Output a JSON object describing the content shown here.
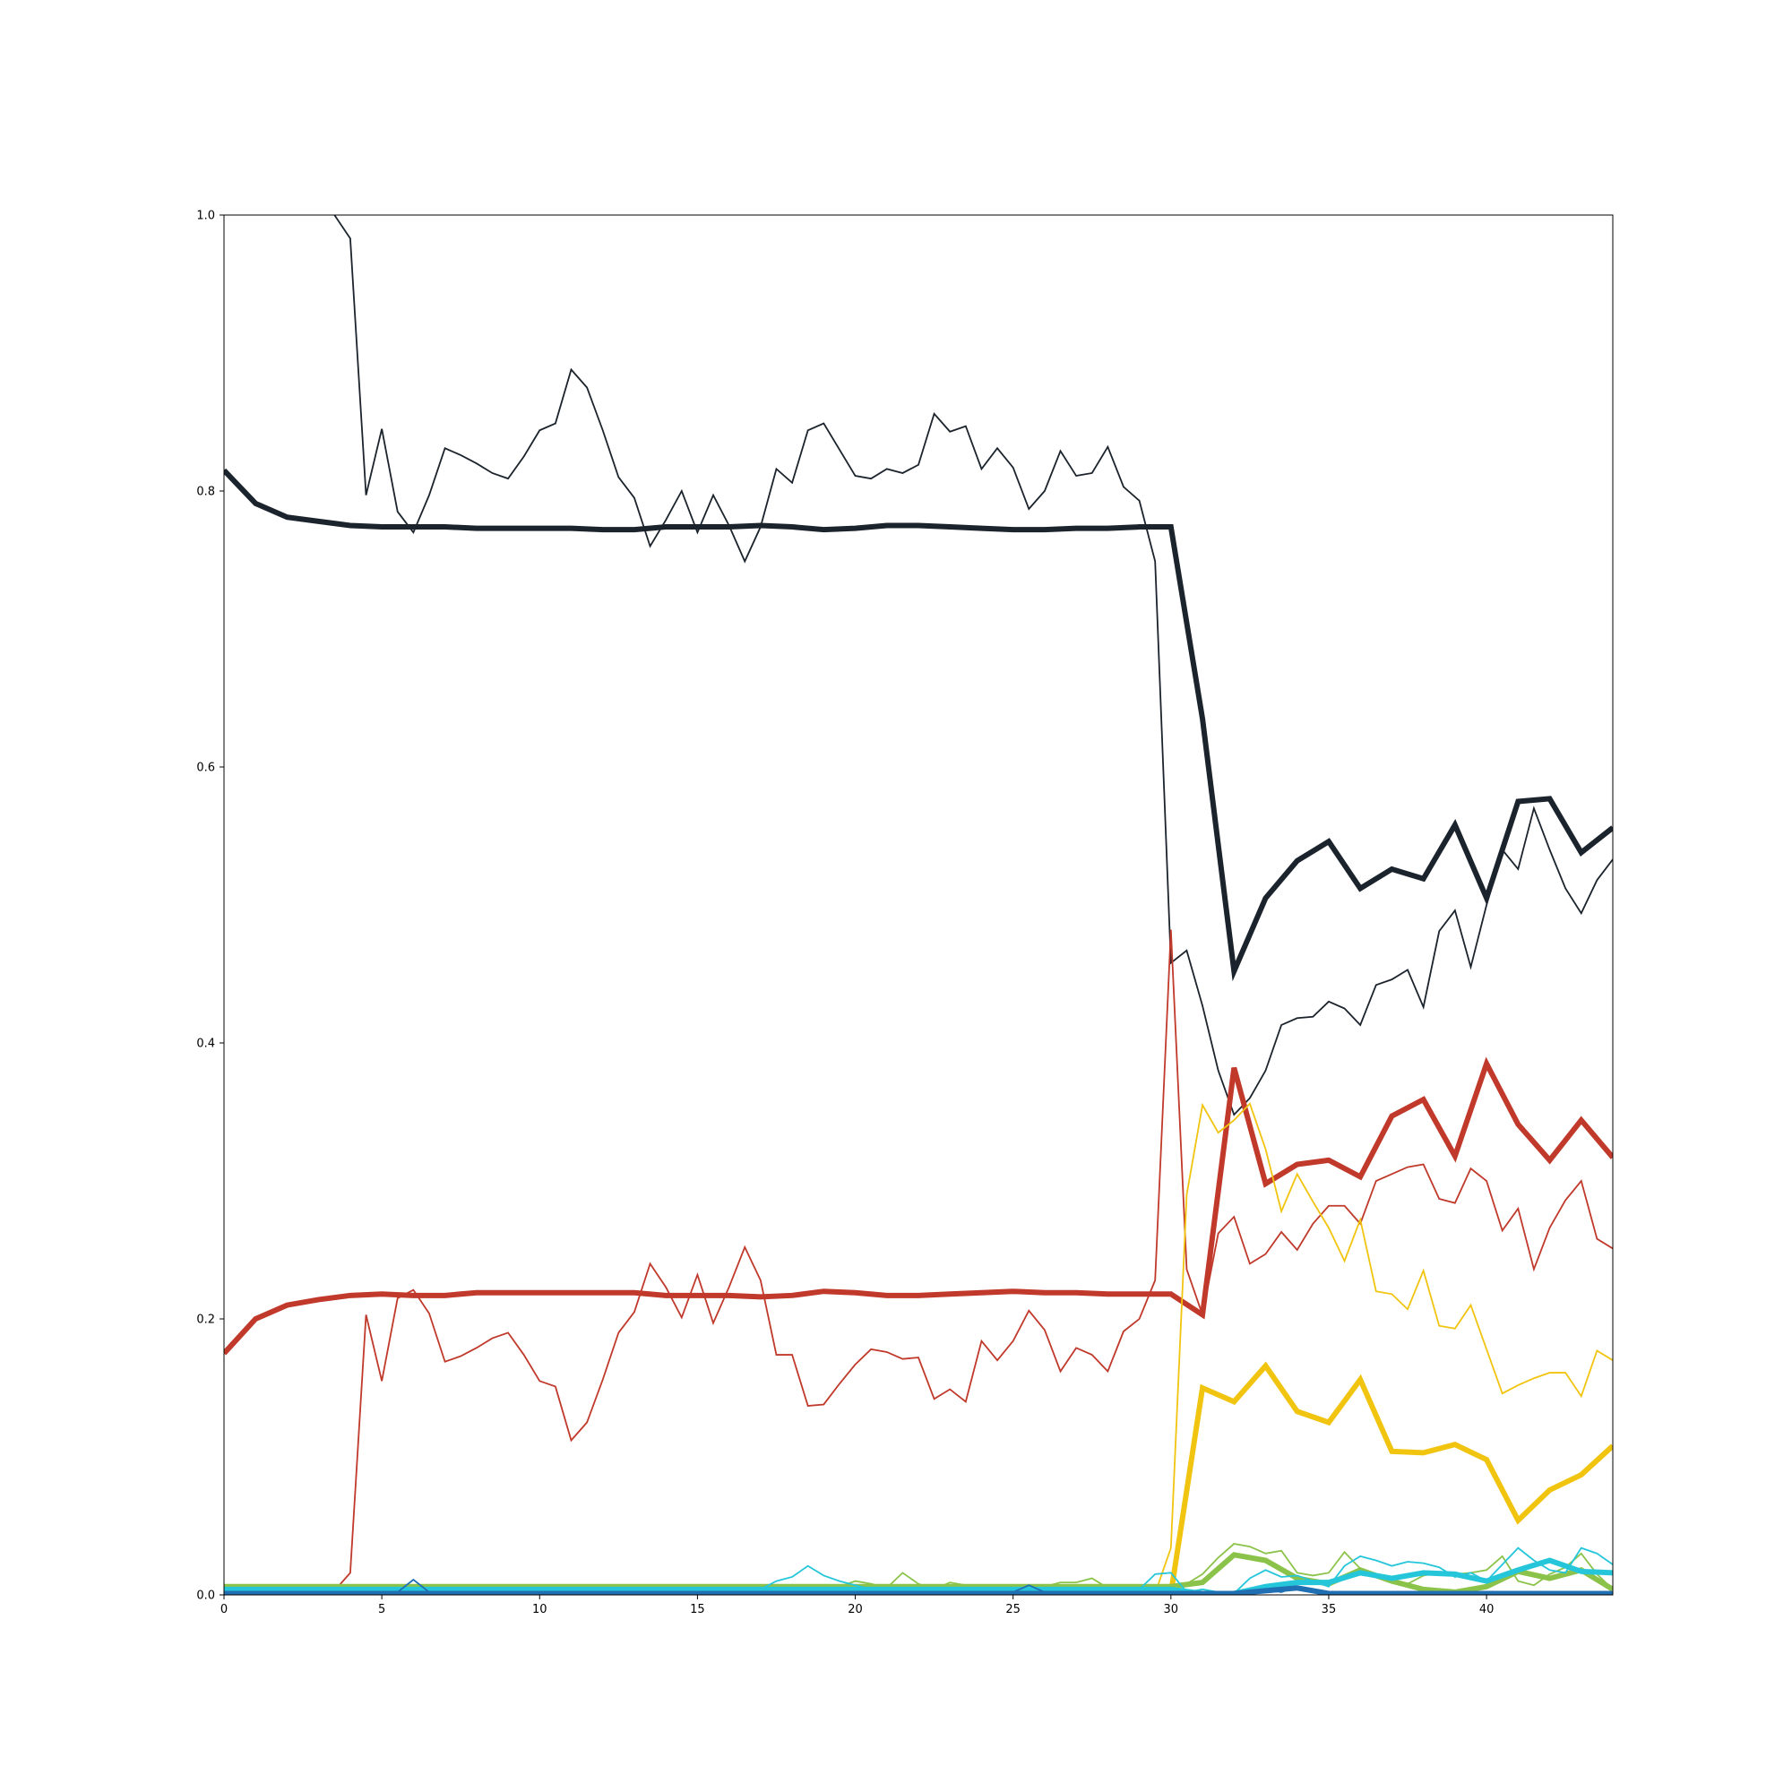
{
  "chart_data": {
    "type": "line",
    "title": "",
    "xlabel": "",
    "ylabel": "",
    "xlim": [
      0,
      44
    ],
    "ylim": [
      0,
      1.0
    ],
    "grid": false,
    "legend": "none",
    "x_ticks": [
      0,
      5,
      10,
      15,
      20,
      25,
      30,
      35,
      40
    ],
    "x_tick_labels": [
      "0",
      "5",
      "10",
      "15",
      "20",
      "25",
      "30",
      "35",
      "40"
    ],
    "y_ticks": [
      0,
      0.2,
      0.4,
      0.6,
      0.8,
      1.0
    ],
    "y_tick_labels": [
      "0.0",
      "0.2",
      "0.4",
      "0.6",
      "0.8",
      "1.0"
    ],
    "series": [
      {
        "color": "#1b232c",
        "weight": "thin",
        "x": [
          3.5,
          4,
          4.5,
          5,
          5.5,
          6,
          6.5,
          7,
          7.5,
          8,
          8.5,
          9,
          9.5,
          10,
          10.5,
          11,
          11.5,
          12,
          12.5,
          13,
          13.5,
          14,
          14.5,
          15,
          15.5,
          16,
          16.5,
          17,
          17.5,
          18,
          18.5,
          19,
          19.5,
          20,
          20.5,
          21,
          21.5,
          22,
          22.5,
          23,
          23.5,
          24,
          24.5,
          25,
          25.5,
          26,
          26.5,
          27,
          27.5,
          28,
          28.5,
          29,
          29.5,
          30,
          30.5,
          31,
          31.5,
          32,
          32.5,
          33,
          33.5,
          34,
          34.5,
          35,
          35.5,
          36,
          36.5,
          37,
          37.5,
          38,
          38.5,
          39,
          39.5,
          40,
          40.5,
          41,
          41.5,
          42,
          42.5,
          43,
          43.5,
          44
        ],
        "y": [
          1.0,
          0.983,
          0.797,
          0.845,
          0.785,
          0.77,
          0.797,
          0.831,
          0.826,
          0.82,
          0.813,
          0.809,
          0.825,
          0.844,
          0.849,
          0.888,
          0.875,
          0.844,
          0.81,
          0.795,
          0.76,
          0.779,
          0.8,
          0.77,
          0.797,
          0.775,
          0.749,
          0.774,
          0.816,
          0.806,
          0.844,
          0.849,
          0.83,
          0.811,
          0.809,
          0.816,
          0.813,
          0.819,
          0.856,
          0.843,
          0.847,
          0.816,
          0.831,
          0.817,
          0.787,
          0.8,
          0.829,
          0.811,
          0.813,
          0.832,
          0.803,
          0.793,
          0.749,
          0.458,
          0.467,
          0.427,
          0.38,
          0.348,
          0.36,
          0.38,
          0.413,
          0.418,
          0.419,
          0.43,
          0.425,
          0.413,
          0.442,
          0.446,
          0.453,
          0.426,
          0.481,
          0.496,
          0.455,
          0.5,
          0.54,
          0.526,
          0.57,
          0.54,
          0.512,
          0.494,
          0.518,
          0.533
        ]
      },
      {
        "color": "#1b232c",
        "weight": "bold",
        "x": [
          0,
          1,
          2,
          3,
          4,
          5,
          6,
          7,
          8,
          9,
          10,
          11,
          12,
          13,
          14,
          15,
          16,
          17,
          18,
          19,
          20,
          21,
          22,
          23,
          24,
          25,
          26,
          27,
          28,
          29,
          30,
          31,
          32,
          33,
          34,
          35,
          36,
          37,
          38,
          39,
          40,
          41,
          42,
          43,
          44
        ],
        "y": [
          0.815,
          0.791,
          0.781,
          0.778,
          0.775,
          0.774,
          0.774,
          0.774,
          0.773,
          0.773,
          0.773,
          0.773,
          0.772,
          0.772,
          0.774,
          0.774,
          0.774,
          0.775,
          0.774,
          0.772,
          0.773,
          0.775,
          0.775,
          0.774,
          0.773,
          0.772,
          0.772,
          0.773,
          0.773,
          0.774,
          0.774,
          0.635,
          0.452,
          0.505,
          0.532,
          0.546,
          0.512,
          0.526,
          0.519,
          0.558,
          0.505,
          0.575,
          0.577,
          0.538,
          0.556
        ]
      },
      {
        "color": "#c0392b",
        "weight": "thin",
        "x": [
          0,
          3.5,
          4,
          4.5,
          5,
          5.5,
          6,
          6.5,
          7,
          7.5,
          8,
          8.5,
          9,
          9.5,
          10,
          10.5,
          11,
          11.5,
          12,
          12.5,
          13,
          13.5,
          14,
          14.5,
          15,
          15.5,
          16,
          16.5,
          17,
          17.5,
          18,
          18.5,
          19,
          19.5,
          20,
          20.5,
          21,
          21.5,
          22,
          22.5,
          23,
          23.5,
          24,
          24.5,
          25,
          25.5,
          26,
          26.5,
          27,
          27.5,
          28,
          28.5,
          29,
          29.5,
          30,
          30.5,
          31,
          31.5,
          32,
          32.5,
          33,
          33.5,
          34,
          34.5,
          35,
          35.5,
          36,
          36.5,
          37,
          37.5,
          38,
          38.5,
          39,
          39.5,
          40,
          40.5,
          41,
          41.5,
          42,
          42.5,
          43,
          43.5,
          44
        ],
        "y": [
          0.003,
          0.003,
          0.016,
          0.203,
          0.155,
          0.215,
          0.221,
          0.204,
          0.169,
          0.173,
          0.179,
          0.186,
          0.19,
          0.174,
          0.155,
          0.151,
          0.112,
          0.125,
          0.156,
          0.19,
          0.205,
          0.24,
          0.223,
          0.201,
          0.232,
          0.197,
          0.223,
          0.252,
          0.228,
          0.174,
          0.174,
          0.137,
          0.138,
          0.153,
          0.167,
          0.178,
          0.176,
          0.171,
          0.172,
          0.142,
          0.149,
          0.14,
          0.184,
          0.17,
          0.184,
          0.206,
          0.192,
          0.162,
          0.179,
          0.174,
          0.162,
          0.191,
          0.2,
          0.228,
          0.482,
          0.236,
          0.203,
          0.262,
          0.274,
          0.24,
          0.247,
          0.263,
          0.25,
          0.269,
          0.282,
          0.282,
          0.269,
          0.3,
          0.305,
          0.31,
          0.312,
          0.287,
          0.284,
          0.309,
          0.3,
          0.264,
          0.28,
          0.236,
          0.266,
          0.286,
          0.3,
          0.258,
          0.251
        ]
      },
      {
        "color": "#c0392b",
        "weight": "bold",
        "x": [
          0,
          1,
          2,
          3,
          4,
          5,
          6,
          7,
          8,
          9,
          10,
          11,
          12,
          13,
          14,
          15,
          16,
          17,
          18,
          19,
          20,
          21,
          22,
          23,
          24,
          25,
          26,
          27,
          28,
          29,
          30,
          31,
          32,
          33,
          34,
          35,
          36,
          37,
          38,
          39,
          40,
          41,
          42,
          43,
          44
        ],
        "y": [
          0.175,
          0.2,
          0.21,
          0.214,
          0.217,
          0.218,
          0.217,
          0.217,
          0.219,
          0.219,
          0.219,
          0.219,
          0.219,
          0.219,
          0.217,
          0.217,
          0.217,
          0.216,
          0.217,
          0.22,
          0.219,
          0.217,
          0.217,
          0.218,
          0.219,
          0.22,
          0.219,
          0.219,
          0.218,
          0.218,
          0.218,
          0.203,
          0.382,
          0.298,
          0.312,
          0.315,
          0.303,
          0.347,
          0.359,
          0.318,
          0.385,
          0.341,
          0.315,
          0.344,
          0.317
        ]
      },
      {
        "color": "#f1c40f",
        "weight": "thin",
        "x": [
          0,
          29.5,
          30,
          30.5,
          31,
          31.5,
          32,
          32.5,
          33,
          33.5,
          34,
          34.5,
          35,
          35.5,
          36,
          36.5,
          37,
          37.5,
          38,
          38.5,
          39,
          39.5,
          40,
          40.5,
          41,
          41.5,
          42,
          42.5,
          43,
          43.5,
          44
        ],
        "y": [
          0.001,
          0.001,
          0.034,
          0.29,
          0.355,
          0.335,
          0.344,
          0.356,
          0.323,
          0.278,
          0.305,
          0.285,
          0.266,
          0.242,
          0.272,
          0.22,
          0.218,
          0.207,
          0.235,
          0.195,
          0.193,
          0.21,
          0.178,
          0.146,
          0.152,
          0.157,
          0.161,
          0.161,
          0.144,
          0.177,
          0.17
        ]
      },
      {
        "color": "#f1c40f",
        "weight": "bold",
        "x": [
          0,
          30,
          31,
          32,
          33,
          34,
          35,
          36,
          37,
          38,
          39,
          40,
          41,
          42,
          43,
          44
        ],
        "y": [
          0.001,
          0.001,
          0.15,
          0.14,
          0.166,
          0.133,
          0.125,
          0.156,
          0.104,
          0.103,
          0.109,
          0.098,
          0.054,
          0.076,
          0.087,
          0.108
        ]
      },
      {
        "color": "#8bc34a",
        "weight": "thin",
        "x": [
          0,
          17,
          17.5,
          18,
          18.5,
          19,
          19.5,
          20,
          20.5,
          21,
          21.5,
          22,
          22.5,
          23,
          23.5,
          24,
          24.5,
          25,
          25.5,
          26,
          26.5,
          27,
          27.5,
          28,
          28.5,
          29,
          29.5,
          30,
          30.5,
          31,
          31.5,
          32,
          32.5,
          33,
          33.5,
          34,
          34.5,
          35,
          35.5,
          36,
          36.5,
          37,
          37.5,
          38,
          38.5,
          39,
          39.5,
          40,
          40.5,
          41,
          41.5,
          42,
          42.5,
          43,
          43.5,
          44
        ],
        "y": [
          0.006,
          0.006,
          0.005,
          0.006,
          0.005,
          0.005,
          0.006,
          0.01,
          0.008,
          0.005,
          0.016,
          0.008,
          0.004,
          0.009,
          0.007,
          0.006,
          0.006,
          0.006,
          0.006,
          0.006,
          0.009,
          0.009,
          0.012,
          0.005,
          0.005,
          0.005,
          0.007,
          0.004,
          0.008,
          0.015,
          0.027,
          0.037,
          0.035,
          0.03,
          0.032,
          0.016,
          0.014,
          0.016,
          0.031,
          0.019,
          0.015,
          0.011,
          0.008,
          0.014,
          0.016,
          0.015,
          0.016,
          0.018,
          0.028,
          0.01,
          0.007,
          0.015,
          0.02,
          0.03,
          0.015,
          0.004
        ]
      },
      {
        "color": "#8bc34a",
        "weight": "bold",
        "x": [
          0,
          1,
          2,
          3,
          4,
          5,
          6,
          7,
          8,
          9,
          10,
          11,
          12,
          13,
          14,
          15,
          16,
          17,
          18,
          19,
          20,
          21,
          22,
          23,
          24,
          25,
          26,
          27,
          28,
          29,
          30,
          31,
          32,
          33,
          34,
          35,
          36,
          37,
          38,
          39,
          40,
          41,
          42,
          43,
          44
        ],
        "y": [
          0.006,
          0.006,
          0.006,
          0.006,
          0.006,
          0.006,
          0.006,
          0.006,
          0.006,
          0.006,
          0.006,
          0.006,
          0.006,
          0.006,
          0.006,
          0.006,
          0.006,
          0.006,
          0.006,
          0.006,
          0.006,
          0.006,
          0.006,
          0.006,
          0.006,
          0.006,
          0.006,
          0.006,
          0.006,
          0.006,
          0.006,
          0.009,
          0.029,
          0.025,
          0.012,
          0.008,
          0.018,
          0.01,
          0.004,
          0.002,
          0.006,
          0.017,
          0.012,
          0.018,
          0.004
        ]
      },
      {
        "color": "#26c6da",
        "weight": "thin",
        "x": [
          0,
          17,
          17.5,
          18,
          18.5,
          19,
          19.5,
          20,
          20.5,
          21,
          29,
          29.5,
          30,
          30.5,
          31,
          31.5,
          32,
          32.5,
          33,
          33.5,
          34,
          34.5,
          35,
          35.5,
          36,
          36.5,
          37,
          37.5,
          38,
          38.5,
          39,
          39.5,
          40,
          40.5,
          41,
          41.5,
          42,
          42.5,
          43,
          43.5,
          44
        ],
        "y": [
          0.004,
          0.004,
          0.01,
          0.013,
          0.021,
          0.014,
          0.01,
          0.007,
          0.004,
          0.004,
          0.004,
          0.015,
          0.016,
          0.002,
          0.004,
          0.002,
          0.001,
          0.012,
          0.018,
          0.013,
          0.014,
          0.01,
          0.006,
          0.021,
          0.028,
          0.025,
          0.021,
          0.024,
          0.023,
          0.02,
          0.013,
          0.016,
          0.01,
          0.022,
          0.034,
          0.025,
          0.018,
          0.016,
          0.034,
          0.03,
          0.022
        ]
      },
      {
        "color": "#26c6da",
        "weight": "bold",
        "x": [
          0,
          30,
          31,
          32,
          33,
          34,
          35,
          36,
          37,
          38,
          39,
          40,
          41,
          42,
          43,
          44
        ],
        "y": [
          0.004,
          0.004,
          0.001,
          0.001,
          0.006,
          0.009,
          0.009,
          0.016,
          0.012,
          0.016,
          0.015,
          0.01,
          0.018,
          0.025,
          0.017,
          0.016
        ]
      },
      {
        "color": "#1f6fb2",
        "weight": "thin",
        "x": [
          0,
          5.5,
          6,
          6.5,
          7,
          25,
          25.5,
          26,
          32.5,
          33,
          33.5,
          34,
          34.5,
          35,
          44
        ],
        "y": [
          0.002,
          0.002,
          0.011,
          0.002,
          0.002,
          0.002,
          0.007,
          0.002,
          0.002,
          0.004,
          0.002,
          0.006,
          0.002,
          0.001,
          0.001
        ]
      },
      {
        "color": "#1f6fb2",
        "weight": "bold",
        "x": [
          0,
          32,
          33,
          34,
          35,
          36,
          44
        ],
        "y": [
          0.001,
          0.001,
          0.003,
          0.005,
          0.001,
          0.001,
          0.001
        ]
      }
    ]
  }
}
